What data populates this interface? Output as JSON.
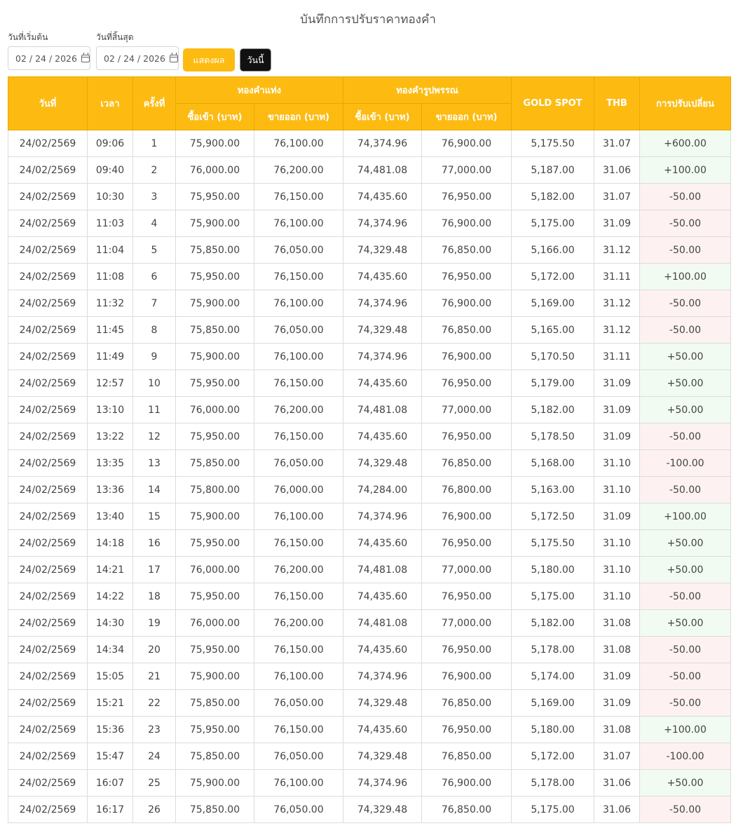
{
  "title": "บันทึกการปรับราคาทองคำ",
  "filters": {
    "start_label": "วันที่เริ่มต้น",
    "end_label": "วันที่สิ้นสุด",
    "start_value": "02 / 24 / 2026",
    "end_value": "02 / 24 / 2026",
    "show_button": "แสดงผล",
    "today_button": "วันนี้"
  },
  "colors": {
    "accent": "#fdbb12",
    "up_bg": "#f1fbf1",
    "down_bg": "#fdf1f1"
  },
  "table": {
    "headers": {
      "date": "วันที่",
      "time": "เวลา",
      "round": "ครั้งที่",
      "bar_group": "ทองคำแท่ง",
      "ornament_group": "ทองคำรูปพรรณ",
      "buy": "ซื้อเข้า (บาท)",
      "sell": "ขายออก (บาท)",
      "gold_spot": "GOLD SPOT",
      "thb": "THB",
      "change": "การปรับเปลี่ยน"
    },
    "rows": [
      [
        "24/02/2569",
        "09:06",
        "1",
        "75,900.00",
        "76,100.00",
        "74,374.96",
        "76,900.00",
        "5,175.50",
        "31.07",
        "+600.00"
      ],
      [
        "24/02/2569",
        "09:40",
        "2",
        "76,000.00",
        "76,200.00",
        "74,481.08",
        "77,000.00",
        "5,187.00",
        "31.06",
        "+100.00"
      ],
      [
        "24/02/2569",
        "10:30",
        "3",
        "75,950.00",
        "76,150.00",
        "74,435.60",
        "76,950.00",
        "5,182.00",
        "31.07",
        "-50.00"
      ],
      [
        "24/02/2569",
        "11:03",
        "4",
        "75,900.00",
        "76,100.00",
        "74,374.96",
        "76,900.00",
        "5,175.00",
        "31.09",
        "-50.00"
      ],
      [
        "24/02/2569",
        "11:04",
        "5",
        "75,850.00",
        "76,050.00",
        "74,329.48",
        "76,850.00",
        "5,166.00",
        "31.12",
        "-50.00"
      ],
      [
        "24/02/2569",
        "11:08",
        "6",
        "75,950.00",
        "76,150.00",
        "74,435.60",
        "76,950.00",
        "5,172.00",
        "31.11",
        "+100.00"
      ],
      [
        "24/02/2569",
        "11:32",
        "7",
        "75,900.00",
        "76,100.00",
        "74,374.96",
        "76,900.00",
        "5,169.00",
        "31.12",
        "-50.00"
      ],
      [
        "24/02/2569",
        "11:45",
        "8",
        "75,850.00",
        "76,050.00",
        "74,329.48",
        "76,850.00",
        "5,165.00",
        "31.12",
        "-50.00"
      ],
      [
        "24/02/2569",
        "11:49",
        "9",
        "75,900.00",
        "76,100.00",
        "74,374.96",
        "76,900.00",
        "5,170.50",
        "31.11",
        "+50.00"
      ],
      [
        "24/02/2569",
        "12:57",
        "10",
        "75,950.00",
        "76,150.00",
        "74,435.60",
        "76,950.00",
        "5,179.00",
        "31.09",
        "+50.00"
      ],
      [
        "24/02/2569",
        "13:10",
        "11",
        "76,000.00",
        "76,200.00",
        "74,481.08",
        "77,000.00",
        "5,182.00",
        "31.09",
        "+50.00"
      ],
      [
        "24/02/2569",
        "13:22",
        "12",
        "75,950.00",
        "76,150.00",
        "74,435.60",
        "76,950.00",
        "5,178.50",
        "31.09",
        "-50.00"
      ],
      [
        "24/02/2569",
        "13:35",
        "13",
        "75,850.00",
        "76,050.00",
        "74,329.48",
        "76,850.00",
        "5,168.00",
        "31.10",
        "-100.00"
      ],
      [
        "24/02/2569",
        "13:36",
        "14",
        "75,800.00",
        "76,000.00",
        "74,284.00",
        "76,800.00",
        "5,163.00",
        "31.10",
        "-50.00"
      ],
      [
        "24/02/2569",
        "13:40",
        "15",
        "75,900.00",
        "76,100.00",
        "74,374.96",
        "76,900.00",
        "5,172.50",
        "31.09",
        "+100.00"
      ],
      [
        "24/02/2569",
        "14:18",
        "16",
        "75,950.00",
        "76,150.00",
        "74,435.60",
        "76,950.00",
        "5,175.50",
        "31.10",
        "+50.00"
      ],
      [
        "24/02/2569",
        "14:21",
        "17",
        "76,000.00",
        "76,200.00",
        "74,481.08",
        "77,000.00",
        "5,180.00",
        "31.10",
        "+50.00"
      ],
      [
        "24/02/2569",
        "14:22",
        "18",
        "75,950.00",
        "76,150.00",
        "74,435.60",
        "76,950.00",
        "5,175.00",
        "31.10",
        "-50.00"
      ],
      [
        "24/02/2569",
        "14:30",
        "19",
        "76,000.00",
        "76,200.00",
        "74,481.08",
        "77,000.00",
        "5,182.00",
        "31.08",
        "+50.00"
      ],
      [
        "24/02/2569",
        "14:34",
        "20",
        "75,950.00",
        "76,150.00",
        "74,435.60",
        "76,950.00",
        "5,178.00",
        "31.08",
        "-50.00"
      ],
      [
        "24/02/2569",
        "15:05",
        "21",
        "75,900.00",
        "76,100.00",
        "74,374.96",
        "76,900.00",
        "5,174.00",
        "31.09",
        "-50.00"
      ],
      [
        "24/02/2569",
        "15:21",
        "22",
        "75,850.00",
        "76,050.00",
        "74,329.48",
        "76,850.00",
        "5,169.00",
        "31.09",
        "-50.00"
      ],
      [
        "24/02/2569",
        "15:36",
        "23",
        "75,950.00",
        "76,150.00",
        "74,435.60",
        "76,950.00",
        "5,180.00",
        "31.08",
        "+100.00"
      ],
      [
        "24/02/2569",
        "15:47",
        "24",
        "75,850.00",
        "76,050.00",
        "74,329.48",
        "76,850.00",
        "5,172.00",
        "31.07",
        "-100.00"
      ],
      [
        "24/02/2569",
        "16:07",
        "25",
        "75,900.00",
        "76,100.00",
        "74,374.96",
        "76,900.00",
        "5,178.00",
        "31.06",
        "+50.00"
      ],
      [
        "24/02/2569",
        "16:17",
        "26",
        "75,850.00",
        "76,050.00",
        "74,329.48",
        "76,850.00",
        "5,175.00",
        "31.06",
        "-50.00"
      ]
    ]
  }
}
